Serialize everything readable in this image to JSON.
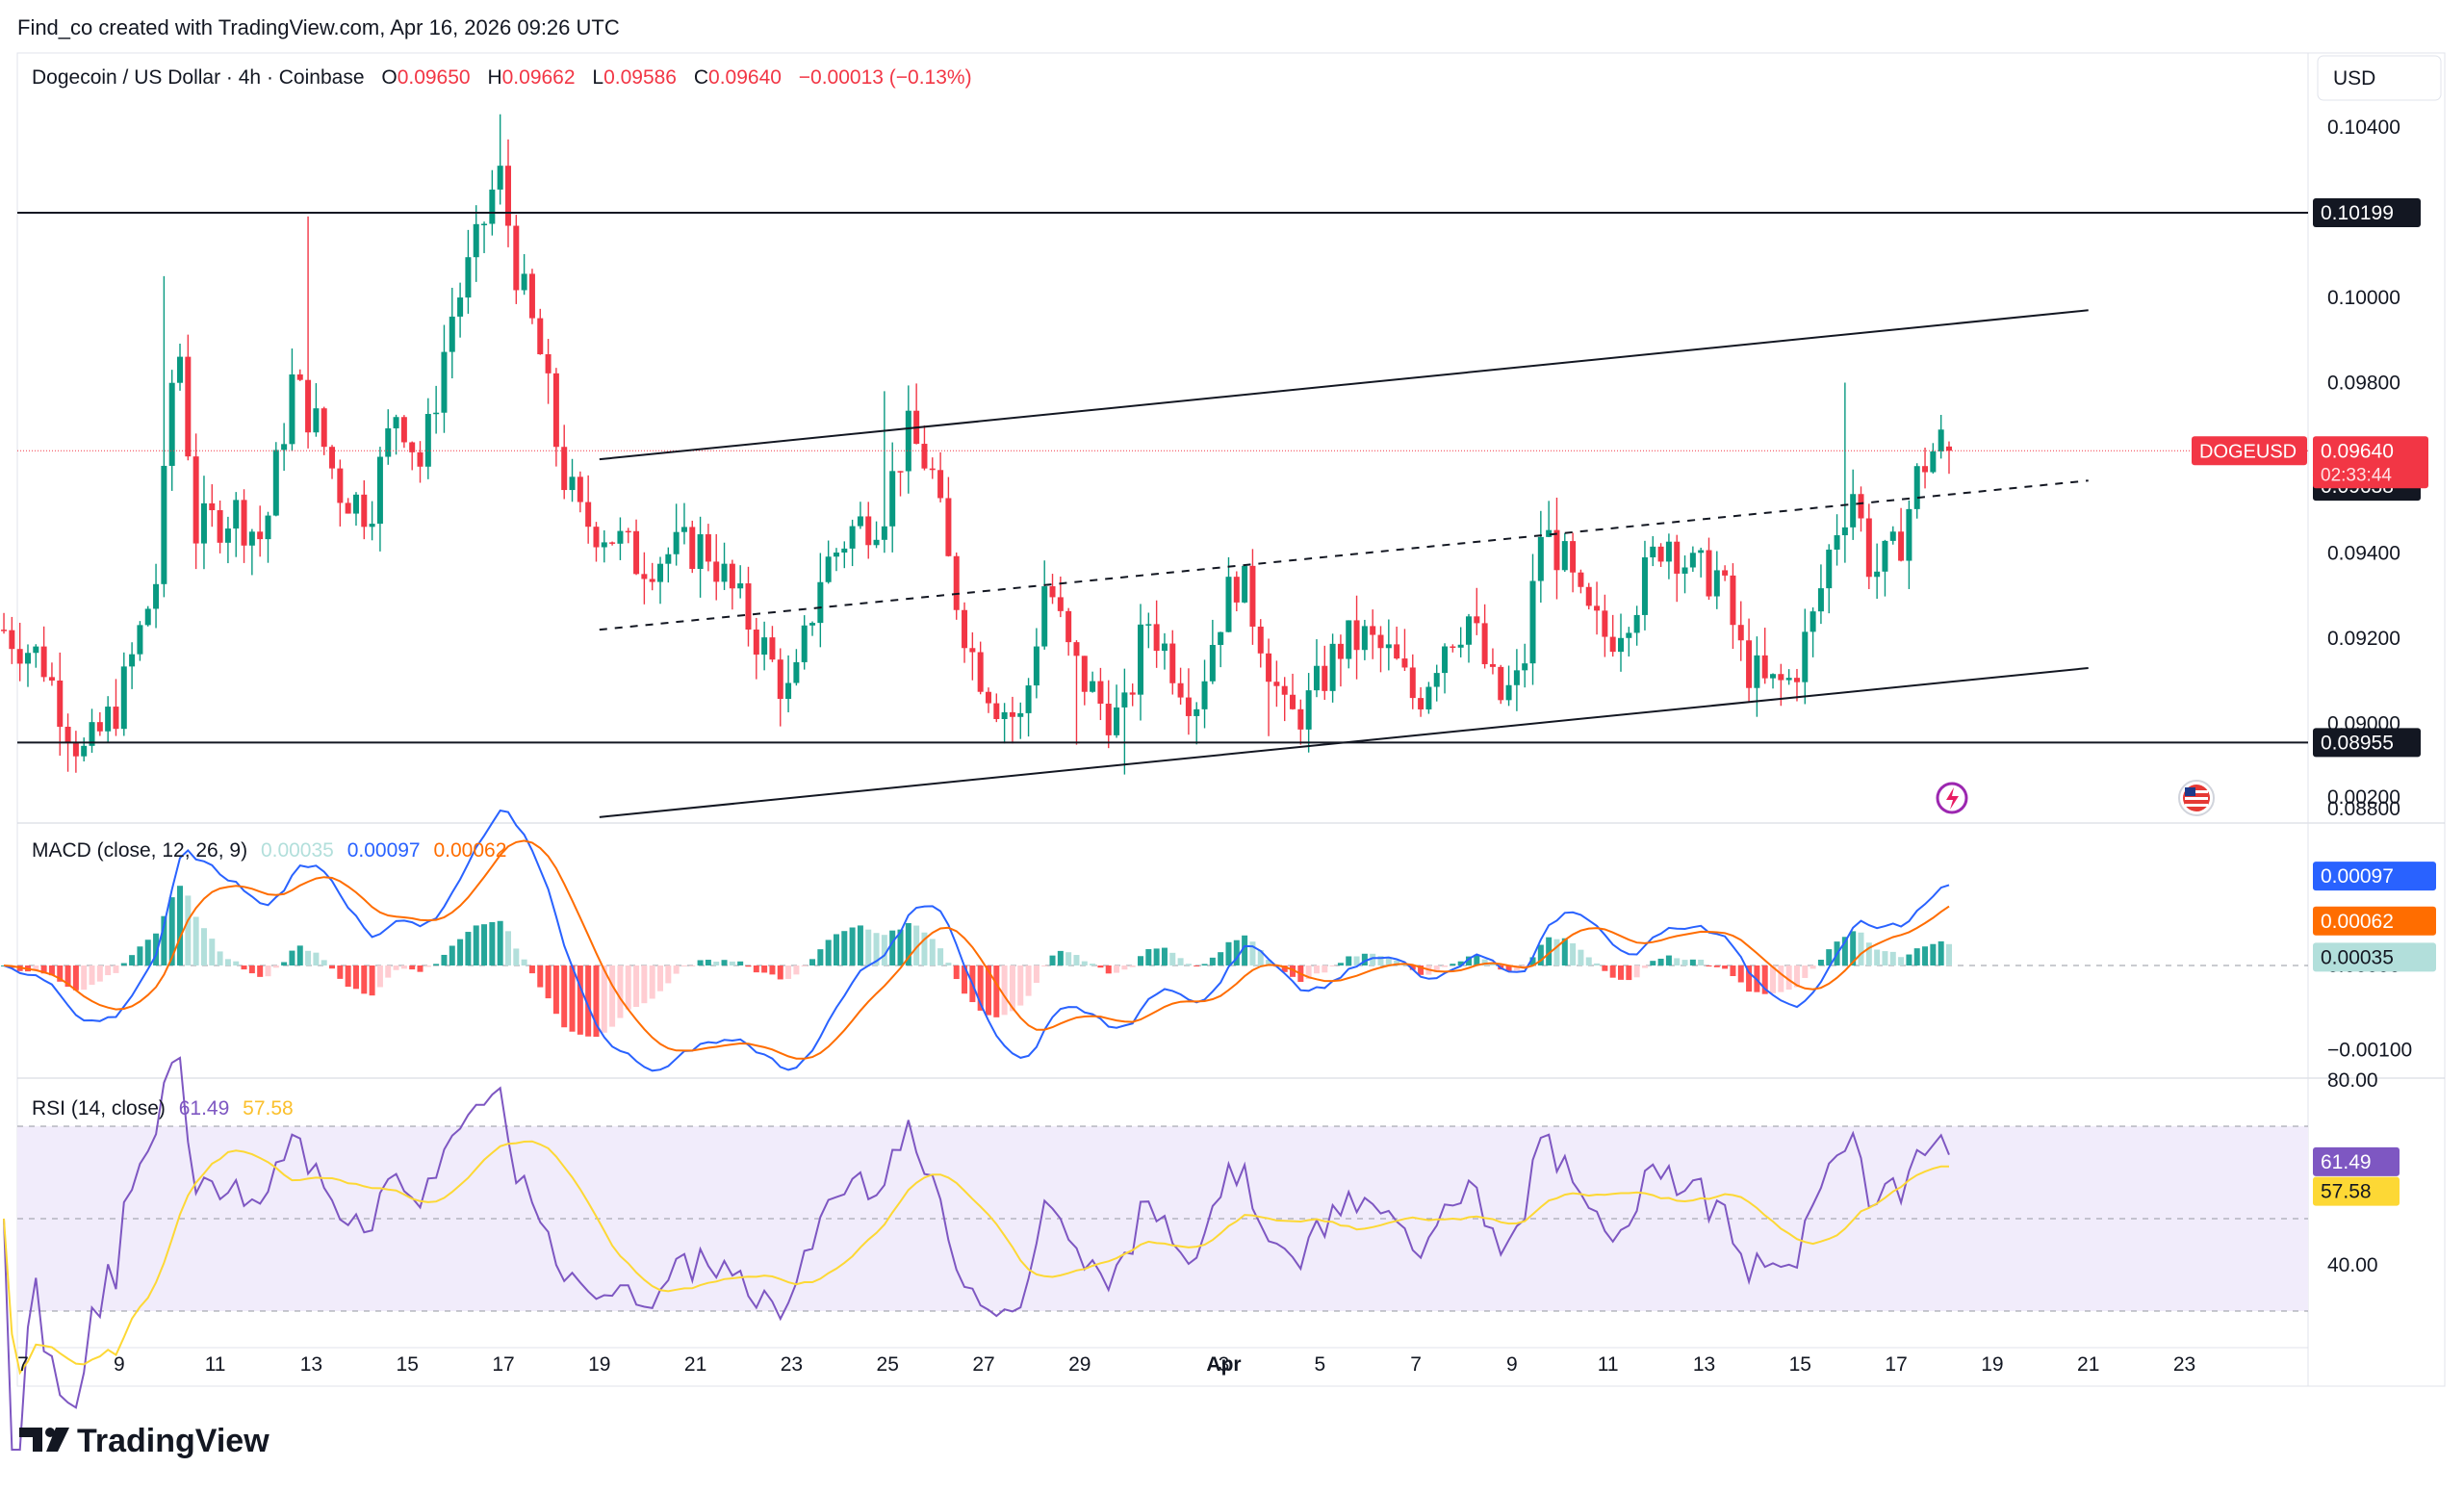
{
  "header": {
    "credit": "Find_co created with TradingView.com, Apr 16, 2026 09:26 UTC",
    "symbol": "Dogecoin / US Dollar · 4h · Coinbase",
    "o_label": "O",
    "o_val": "0.09650",
    "h_label": "H",
    "h_val": "0.09662",
    "l_label": "L",
    "l_val": "0.09586",
    "c_label": "C",
    "c_val": "0.09640",
    "change": "−0.00013 (−0.13%)"
  },
  "currency": "USD",
  "brand": {
    "name": "TradingView"
  },
  "price_axis": {
    "ticks": [
      "0.10400",
      "0.10000",
      "0.09800",
      "0.09400",
      "0.09200",
      "0.09000",
      "0.08800"
    ],
    "tick_values": [
      0.104,
      0.1,
      0.098,
      0.094,
      0.092,
      0.09,
      0.088
    ],
    "labels": {
      "resistance": "0.10199",
      "support": "0.08955",
      "symbol_tag": "DOGEUSD",
      "last_price": "0.09640",
      "countdown": "02:33:44",
      "mid_line": "0.09638"
    }
  },
  "time_axis": {
    "labels": [
      "7",
      "9",
      "11",
      "13",
      "15",
      "17",
      "19",
      "21",
      "23",
      "25",
      "27",
      "29",
      "Apr",
      "3",
      "5",
      "7",
      "9",
      "11",
      "13",
      "15",
      "17",
      "19",
      "21",
      "23"
    ]
  },
  "macd": {
    "title": "MACD (close, 12, 26, 9)",
    "hist_label": "0.00035",
    "macd_label": "0.00097",
    "signal_label": "0.00062",
    "axis_ticks": [
      "0.00200",
      "0.00000",
      "−0.00100"
    ],
    "axis_values": [
      0.002,
      0.0,
      -0.001
    ],
    "colors": {
      "macd": "#2962ff",
      "signal": "#ff6d00",
      "hist_pos_strong": "#26a69a",
      "hist_pos_weak": "#b2dfdb",
      "hist_neg_strong": "#ff5252",
      "hist_neg_weak": "#ffcdd2"
    }
  },
  "rsi": {
    "title": "RSI (14, close)",
    "rsi_label": "61.49",
    "ma_label": "57.58",
    "axis_ticks": [
      "80.00",
      "40.00"
    ],
    "axis_values": [
      80,
      40
    ],
    "colors": {
      "rsi": "#7e57c2",
      "ma": "#fdd835",
      "band": "#f1ecfb"
    }
  },
  "colors": {
    "up": "#089981",
    "down": "#f23645",
    "line": "#131722"
  },
  "chart_data": {
    "type": "candlestick",
    "title": "Dogecoin / US Dollar · 4h · Coinbase",
    "period": "4h",
    "x_range": [
      "Mar 7",
      "Apr 23"
    ],
    "ylim": [
      0.0875,
      0.1045
    ],
    "last": {
      "open": 0.0965,
      "high": 0.09662,
      "low": 0.09586,
      "close": 0.0964
    },
    "key_points": [
      {
        "date": "Mar 8",
        "price": 0.0893,
        "note": "local low"
      },
      {
        "date": "Mar 10",
        "price": 0.1005,
        "note": "spike high"
      },
      {
        "date": "Mar 13",
        "price": 0.1019,
        "note": "high"
      },
      {
        "date": "Mar 17",
        "price": 0.1043,
        "note": "period high"
      },
      {
        "date": "Mar 18",
        "price": 0.0975
      },
      {
        "date": "Mar 23",
        "price": 0.0908
      },
      {
        "date": "Mar 25",
        "price": 0.0978
      },
      {
        "date": "Mar 29",
        "price": 0.0895
      },
      {
        "date": "Mar 30",
        "price": 0.0888,
        "note": "wick low"
      },
      {
        "date": "Apr 2",
        "price": 0.0897
      },
      {
        "date": "Apr 8",
        "price": 0.0953
      },
      {
        "date": "Apr 12",
        "price": 0.0905
      },
      {
        "date": "Apr 14",
        "price": 0.098
      },
      {
        "date": "Apr 16",
        "price": 0.0964,
        "note": "last"
      }
    ],
    "horizontal_levels": [
      0.10199,
      0.08955,
      0.0964
    ],
    "channel": {
      "upper": [
        [
          "Mar 19",
          0.0962
        ],
        [
          "Apr 19",
          0.0997
        ]
      ],
      "middle": [
        [
          "Mar 19",
          0.0922
        ],
        [
          "Apr 19",
          0.0957
        ]
      ],
      "lower": [
        [
          "Mar 19",
          0.0878
        ],
        [
          "Apr 19",
          0.0913
        ]
      ]
    },
    "macd_last": {
      "macd": 0.00097,
      "signal": 0.00062,
      "histogram": 0.00035
    },
    "rsi_last": {
      "rsi": 61.49,
      "ma": 57.58
    },
    "rsi_bands": [
      70,
      50,
      30
    ]
  }
}
